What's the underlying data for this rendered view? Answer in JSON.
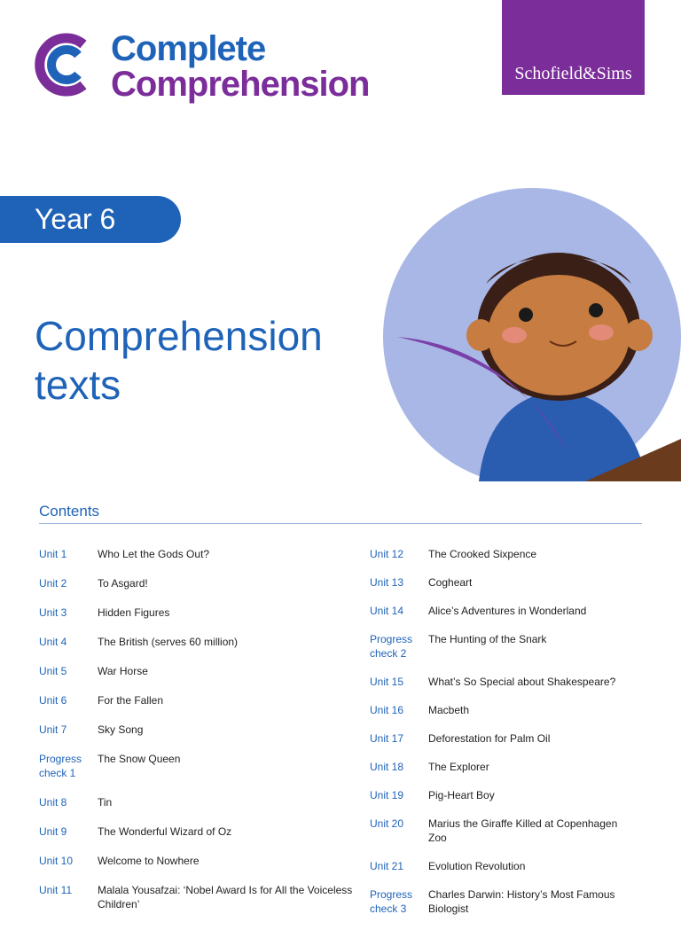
{
  "header": {
    "logo_line1": "Complete",
    "logo_line2": "Comprehension",
    "publisher": "Schofield&Sims"
  },
  "badge": "Year 6",
  "title": "Comprehension texts",
  "contents": {
    "heading": "Contents",
    "left": [
      {
        "unit": "Unit 1",
        "title": "Who Let the Gods Out?"
      },
      {
        "unit": "Unit 2",
        "title": "To Asgard!"
      },
      {
        "unit": "Unit 3",
        "title": "Hidden Figures"
      },
      {
        "unit": "Unit 4",
        "title": "The British (serves 60 million)"
      },
      {
        "unit": "Unit 5",
        "title": "War Horse"
      },
      {
        "unit": "Unit 6",
        "title": "For the Fallen"
      },
      {
        "unit": "Unit 7",
        "title": "Sky Song"
      },
      {
        "unit": "Progress check 1",
        "title": "The Snow Queen"
      },
      {
        "unit": "Unit 8",
        "title": "Tin"
      },
      {
        "unit": "Unit 9",
        "title": "The Wonderful Wizard of Oz"
      },
      {
        "unit": "Unit 10",
        "title": "Welcome to Nowhere"
      },
      {
        "unit": "Unit 11",
        "title": "Malala Yousafzai: ‘Nobel Award Is for All the Voiceless Children’"
      }
    ],
    "right": [
      {
        "unit": "Unit 12",
        "title": "The Crooked Sixpence"
      },
      {
        "unit": "Unit 13",
        "title": "Cogheart"
      },
      {
        "unit": "Unit 14",
        "title": "Alice’s Adventures in Wonderland"
      },
      {
        "unit": "Progress check 2",
        "title": "The Hunting of the Snark"
      },
      {
        "unit": "Unit 15",
        "title": "What’s So Special about Shakespeare?"
      },
      {
        "unit": "Unit 16",
        "title": "Macbeth"
      },
      {
        "unit": "Unit 17",
        "title": "Deforestation for Palm Oil"
      },
      {
        "unit": "Unit 18",
        "title": "The Explorer"
      },
      {
        "unit": "Unit 19",
        "title": "Pig-Heart Boy"
      },
      {
        "unit": "Unit 20",
        "title": "Marius the Giraffe Killed at Copenhagen Zoo"
      },
      {
        "unit": "Unit 21",
        "title": "Evolution Revolution"
      },
      {
        "unit": "Progress check 3",
        "title": "Charles Darwin: History’s Most Famous Biologist"
      }
    ]
  }
}
